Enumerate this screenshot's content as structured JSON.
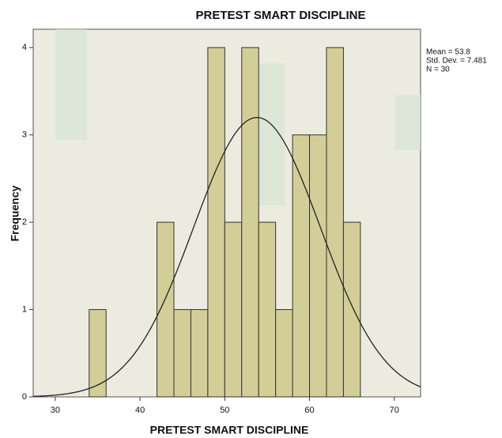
{
  "chart_data": {
    "type": "histogram",
    "title": "PRETEST SMART DISCIPLINE",
    "xlabel": "PRETEST SMART DISCIPLINE",
    "ylabel": "Frequency",
    "bins": [
      34,
      36,
      38,
      40,
      42,
      44,
      46,
      48,
      50,
      52,
      54,
      56,
      58,
      60,
      62,
      64,
      66
    ],
    "counts": [
      1,
      0,
      0,
      0,
      2,
      1,
      1,
      4,
      2,
      4,
      2,
      1,
      3,
      3,
      4,
      2
    ],
    "color": "#d3ce97",
    "xlim": [
      27.4,
      73.1
    ],
    "xticks": [
      30,
      40,
      50,
      60,
      70
    ],
    "ylim": [
      0,
      4.21
    ],
    "yticks": [
      0,
      1,
      2,
      3,
      4
    ],
    "grid": false,
    "normal": {
      "mean": 53.8,
      "sd": 7.481,
      "n": 30
    },
    "stats_text": [
      "Mean = 53.8",
      "Std. Dev. = 7.481",
      "N = 30"
    ]
  }
}
